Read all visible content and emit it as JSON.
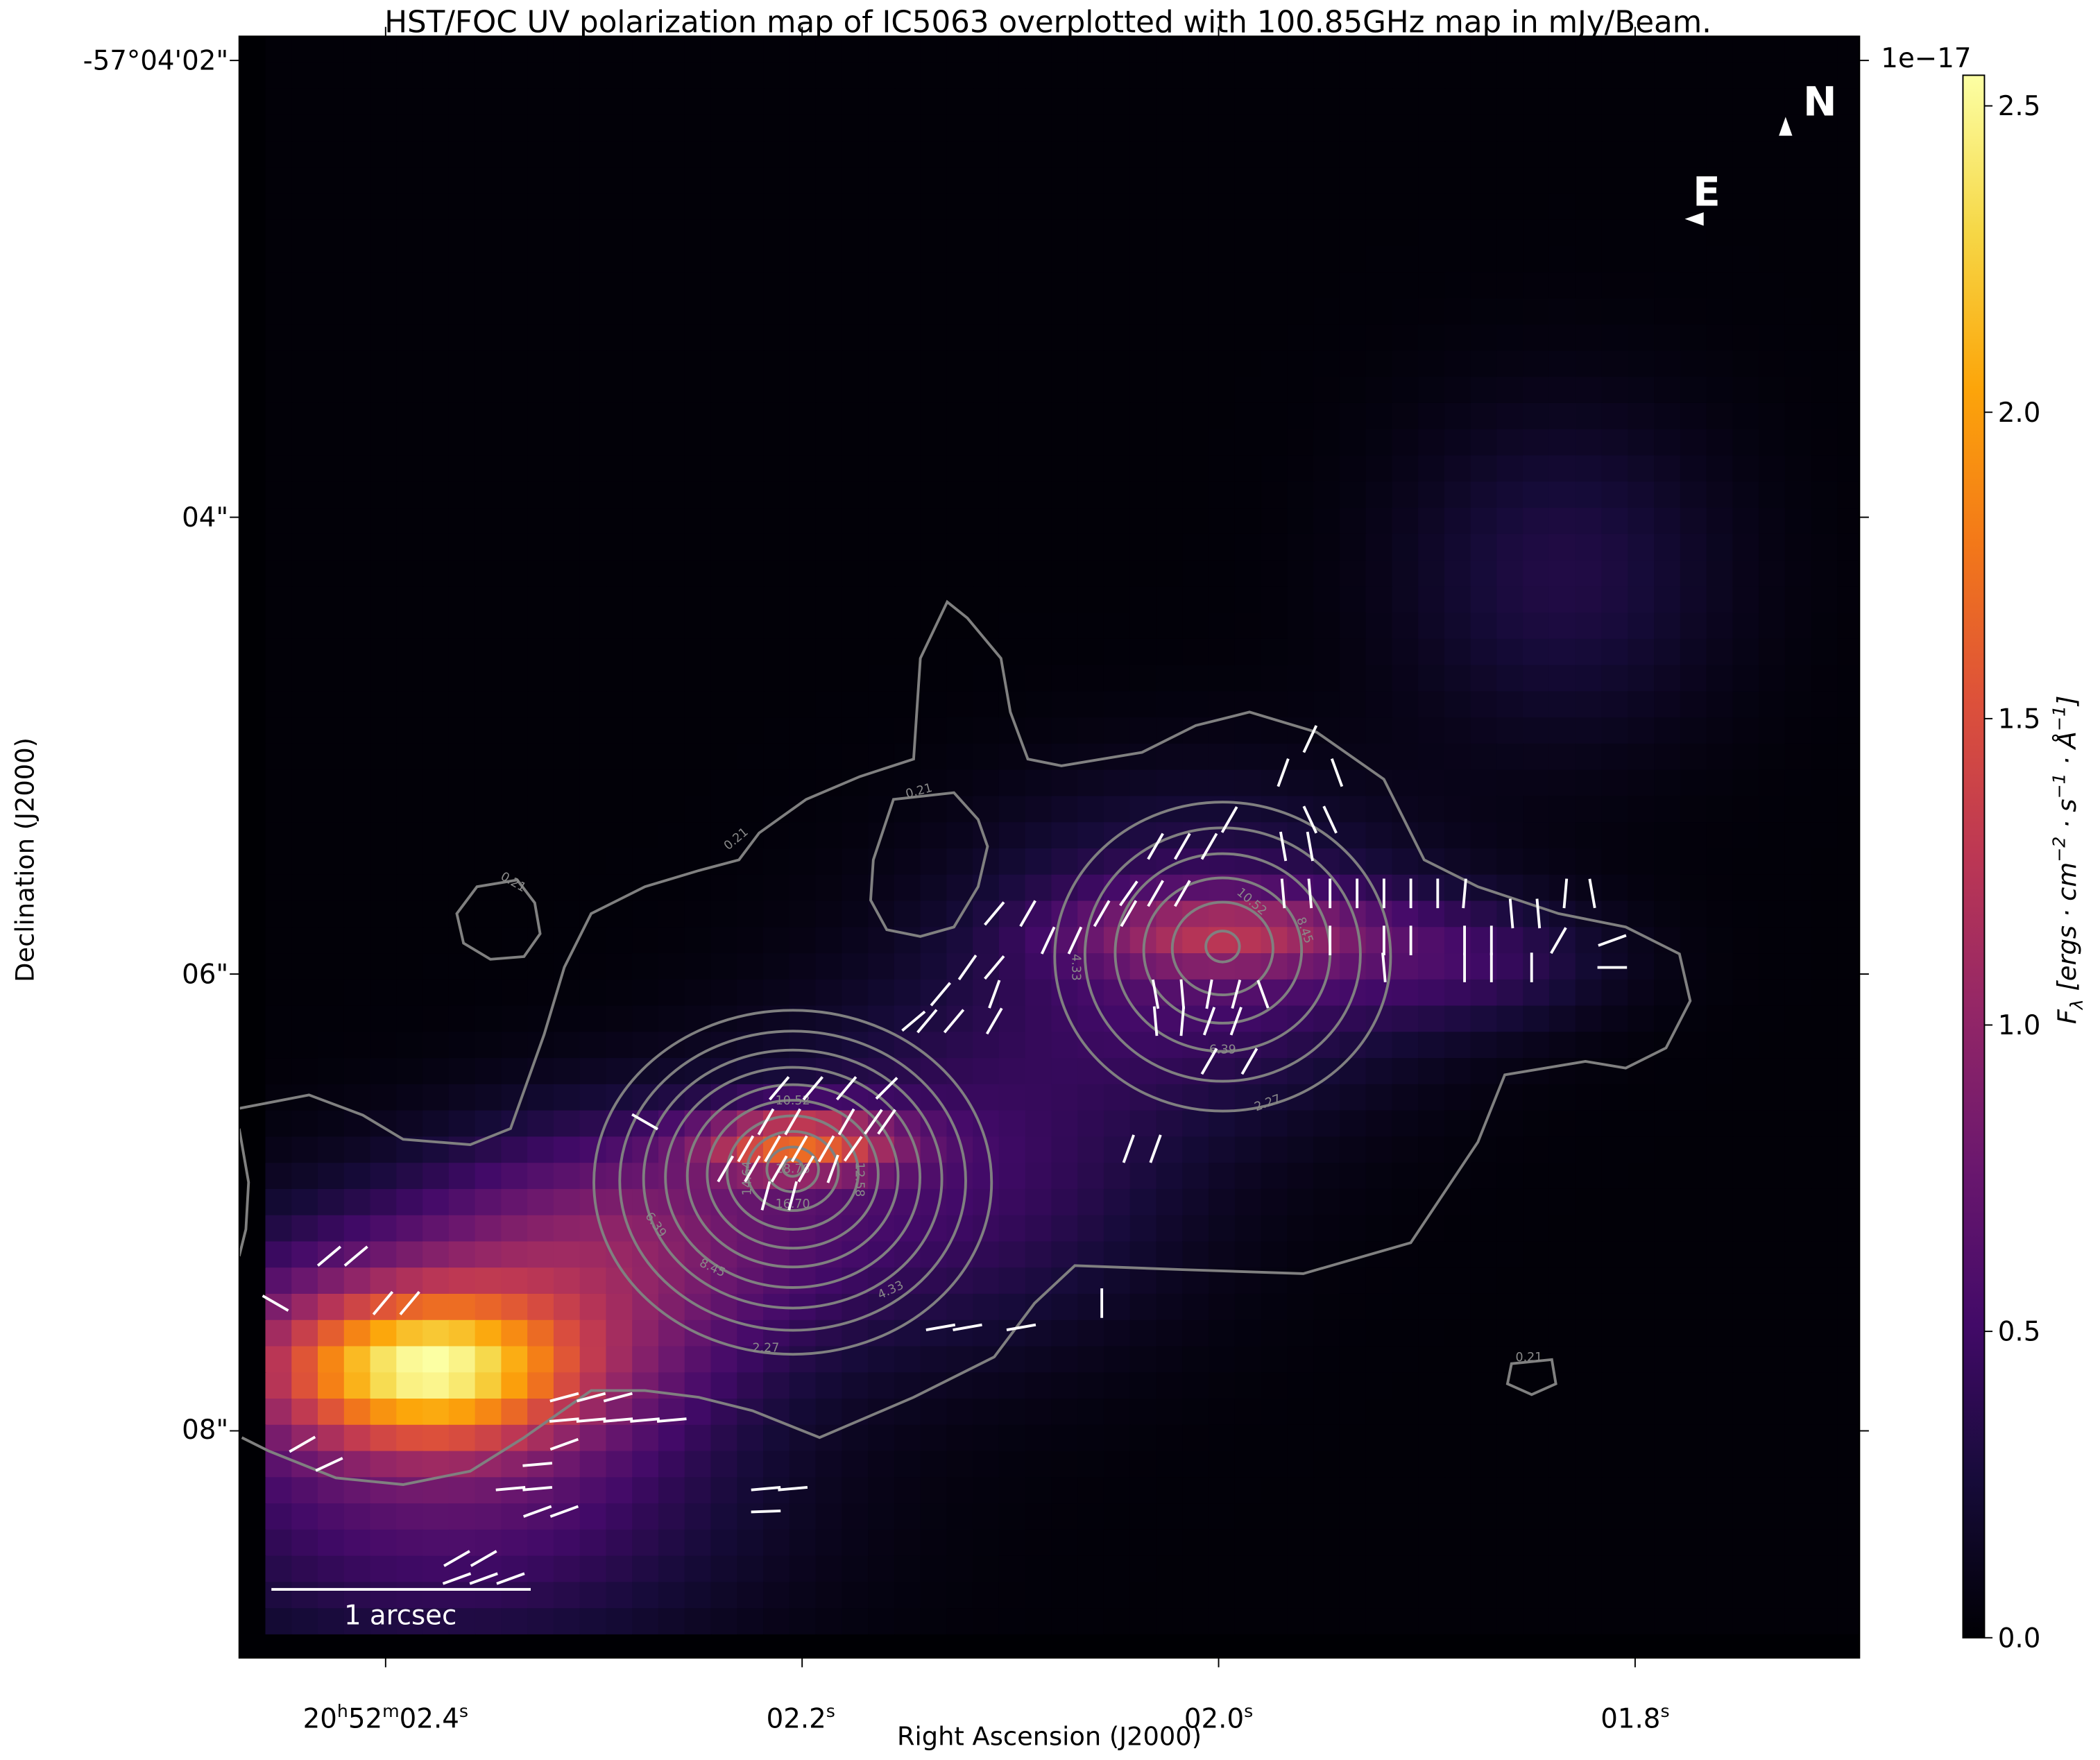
{
  "chart_data": {
    "type": "heatmap",
    "title": "HST/FOC UV polarization map of IC5063 overplotted with 100.85GHz map in mJy/Beam.",
    "xlabel": "Right Ascension (J2000)",
    "ylabel": "Declination (J2000)",
    "x_ticks": [
      {
        "h": "20",
        "m": "52",
        "s": "02.4",
        "value_s": 2.4
      },
      {
        "s": "02.2",
        "value_s": 2.2
      },
      {
        "s": "02.0",
        "value_s": 2.0
      },
      {
        "s": "01.8",
        "value_s": 1.8
      }
    ],
    "y_ticks": [
      {
        "label": "-57°04'02\"",
        "value_arcsec": 2
      },
      {
        "label": "04\"",
        "value_arcsec": 4
      },
      {
        "label": "06\"",
        "value_arcsec": 6
      },
      {
        "label": "08\"",
        "value_arcsec": 8
      }
    ],
    "colormap": "inferno",
    "colorbar": {
      "offset_label": "1e−17",
      "label": {
        "main": "F",
        "sub": "λ",
        "body": " [ergs · cm",
        "e1": "−2",
        "mid1": " · s",
        "e2": "−1",
        "mid2": " · Å",
        "e3": "−1",
        "end": "]"
      },
      "ticks": [
        "0.0",
        "0.5",
        "1.0",
        "1.5",
        "2.0",
        "2.5"
      ],
      "range": [
        0,
        2.55
      ]
    },
    "heatmap_components": [
      {
        "ra_s": 2.382,
        "dec_arcsec": 7.74,
        "peak": 1.45,
        "sigma_ra_arcsec": 0.45,
        "sigma_dec_arcsec": 0.22
      },
      {
        "ra_s": 2.372,
        "dec_arcsec": 7.65,
        "peak": 1.0,
        "sigma_ra_arcsec": 0.8,
        "sigma_dec_arcsec": 0.4
      },
      {
        "ra_s": 2.201,
        "dec_arcsec": 6.74,
        "peak": 1.25,
        "sigma_ra_arcsec": 0.3,
        "sigma_dec_arcsec": 0.1
      },
      {
        "ra_s": 2.285,
        "dec_arcsec": 7.1,
        "peak": 0.65,
        "sigma_ra_arcsec": 0.6,
        "sigma_dec_arcsec": 0.35
      },
      {
        "ra_s": 2.13,
        "dec_arcsec": 6.9,
        "peak": 0.45,
        "sigma_ra_arcsec": 0.7,
        "sigma_dec_arcsec": 0.5
      },
      {
        "ra_s": 2.01,
        "dec_arcsec": 5.9,
        "peak": 0.55,
        "sigma_ra_arcsec": 0.7,
        "sigma_dec_arcsec": 0.45
      },
      {
        "ra_s": 1.995,
        "dec_arcsec": 5.82,
        "peak": 0.7,
        "sigma_ra_arcsec": 0.45,
        "sigma_dec_arcsec": 0.12
      },
      {
        "ra_s": 1.88,
        "dec_arcsec": 5.95,
        "peak": 0.35,
        "sigma_ra_arcsec": 0.45,
        "sigma_dec_arcsec": 0.2
      },
      {
        "ra_s": 1.835,
        "dec_arcsec": 4.25,
        "peak": 0.3,
        "sigma_ra_arcsec": 0.5,
        "sigma_dec_arcsec": 0.5
      },
      {
        "ra_s": 2.37,
        "dec_arcsec": 8.45,
        "peak": 0.45,
        "sigma_ra_arcsec": 0.9,
        "sigma_dec_arcsec": 0.4
      }
    ],
    "contours": {
      "unit": "mJy/Beam",
      "frequency": "100.85GHz",
      "levels": [
        0.21,
        2.27,
        4.33,
        6.39,
        8.45,
        10.52,
        12.58,
        14.64,
        16.7,
        18.76
      ],
      "labels_shown": [
        "0.21",
        "0.21",
        "0.21",
        "0.21",
        "2.27",
        "4.33",
        "6.39",
        "8.45",
        "10.52",
        "12.58",
        "14.64",
        "16.70",
        "18.76",
        "2.27",
        "4.33",
        "6.39",
        "8.45",
        "10.52"
      ]
    },
    "polarization_vectors": [
      {
        "dec": 4.971,
        "v": [
          [
            1.9561,
            -25
          ]
        ]
      },
      {
        "dec": 5.118,
        "v": [
          [
            1.969,
            -20
          ],
          [
            1.9432,
            20
          ]
        ]
      },
      {
        "dec": 5.324,
        "v": [
          [
            1.9948,
            -30
          ],
          [
            1.9561,
            25
          ],
          [
            1.9465,
            25
          ]
        ]
      },
      {
        "dec": 5.441,
        "v": [
          [
            2.0303,
            -30
          ],
          [
            2.0174,
            -30
          ],
          [
            2.0045,
            -30
          ],
          [
            1.969,
            10
          ],
          [
            1.9561,
            10
          ]
        ]
      },
      {
        "dec": 5.647,
        "v": [
          [
            2.0432,
            -35
          ],
          [
            2.0303,
            -30
          ],
          [
            2.0174,
            -30
          ],
          [
            1.969,
            5
          ],
          [
            1.9561,
            5
          ],
          [
            1.9465,
            0
          ],
          [
            1.9335,
            0
          ],
          [
            1.9206,
            0
          ],
          [
            1.9077,
            0
          ],
          [
            1.8948,
            0
          ],
          [
            1.8819,
            -5
          ],
          [
            1.8335,
            -5
          ],
          [
            1.8206,
            10
          ]
        ]
      },
      {
        "dec": 5.735,
        "v": [
          [
            2.0561,
            -30
          ],
          [
            2.0432,
            -30
          ],
          [
            2.0916,
            -30
          ],
          [
            2.1077,
            -40
          ],
          [
            1.8594,
            5
          ],
          [
            1.8465,
            5
          ]
        ]
      },
      {
        "dec": 5.853,
        "v": [
          [
            2.069,
            -25
          ],
          [
            2.0819,
            -25
          ],
          [
            1.9465,
            0
          ],
          [
            1.9206,
            0
          ],
          [
            1.9077,
            0
          ],
          [
            1.8819,
            0
          ],
          [
            1.869,
            0
          ],
          [
            1.8368,
            -30
          ],
          [
            1.811,
            -70
          ]
        ]
      },
      {
        "dec": 5.971,
        "v": [
          [
            2.1077,
            -40
          ],
          [
            2.1206,
            -35
          ],
          [
            1.8819,
            0
          ],
          [
            1.869,
            0
          ],
          [
            1.8497,
            0
          ],
          [
            1.811,
            -90
          ],
          [
            1.9206,
            5
          ]
        ]
      },
      {
        "dec": 6.088,
        "v": [
          [
            2.1335,
            -40
          ],
          [
            2.1077,
            -20
          ],
          [
            2.0303,
            10
          ],
          [
            2.0174,
            5
          ],
          [
            2.0045,
            -10
          ],
          [
            1.9916,
            -15
          ],
          [
            1.9787,
            20
          ]
        ]
      },
      {
        "dec": 6.206,
        "v": [
          [
            2.14,
            -40
          ],
          [
            2.1271,
            -40
          ],
          [
            2.1077,
            -30
          ],
          [
            2.0303,
            5
          ],
          [
            2.0174,
            -5
          ],
          [
            2.0045,
            -20
          ],
          [
            1.9916,
            -20
          ],
          [
            2.1465,
            -50
          ]
        ]
      },
      {
        "dec": 6.382,
        "v": [
          [
            2.0045,
            -30
          ],
          [
            1.9852,
            -30
          ]
        ]
      },
      {
        "dec": 6.5,
        "v": [
          [
            2.211,
            -40
          ],
          [
            2.1948,
            -40
          ],
          [
            2.1787,
            -40
          ],
          [
            2.1594,
            -45
          ]
        ]
      },
      {
        "dec": 6.647,
        "v": [
          [
            2.2174,
            -30
          ],
          [
            2.2045,
            -30
          ],
          [
            2.1787,
            -30
          ],
          [
            2.1658,
            -35
          ],
          [
            2.1594,
            -35
          ],
          [
            2.2755,
            60
          ]
        ]
      },
      {
        "dec": 6.765,
        "v": [
          [
            2.2271,
            -30
          ],
          [
            2.2142,
            -30
          ],
          [
            2.2013,
            -30
          ],
          [
            2.1884,
            -30
          ],
          [
            2.1755,
            -35
          ],
          [
            2.0432,
            -20
          ],
          [
            2.0303,
            -20
          ]
        ]
      },
      {
        "dec": 6.853,
        "v": [
          [
            2.2368,
            -30
          ],
          [
            2.2239,
            -30
          ],
          [
            2.211,
            -30
          ],
          [
            2.1981,
            -30
          ],
          [
            2.1852,
            -20
          ]
        ]
      },
      {
        "dec": 6.971,
        "v": [
          [
            2.2174,
            -15
          ],
          [
            2.2045,
            -15
          ]
        ]
      },
      {
        "dec": 7.235,
        "v": [
          [
            2.4271,
            -50
          ],
          [
            2.4142,
            -50
          ]
        ]
      },
      {
        "dec": 7.441,
        "v": [
          [
            2.4529,
            60
          ],
          [
            2.4013,
            -40
          ],
          [
            2.3884,
            -40
          ],
          [
            2.0561,
            0
          ]
        ]
      },
      {
        "dec": 7.547,
        "v": [
          [
            2.1335,
            -80
          ],
          [
            2.1206,
            -80
          ],
          [
            2.0948,
            -80
          ]
        ]
      },
      {
        "dec": 7.853,
        "v": [
          [
            2.3142,
            -75
          ],
          [
            2.3013,
            -75
          ],
          [
            2.2884,
            -75
          ]
        ]
      },
      {
        "dec": 7.953,
        "v": [
          [
            2.3142,
            -85
          ],
          [
            2.3013,
            -85
          ],
          [
            2.2884,
            -85
          ],
          [
            2.2755,
            -85
          ],
          [
            2.2626,
            -85
          ]
        ]
      },
      {
        "dec": 8.059,
        "v": [
          [
            2.44,
            -60
          ],
          [
            2.3142,
            -70
          ]
        ]
      },
      {
        "dec": 8.147,
        "v": [
          [
            2.4271,
            -65
          ],
          [
            2.3271,
            -85
          ]
        ]
      },
      {
        "dec": 8.253,
        "v": [
          [
            2.34,
            -85
          ],
          [
            2.3271,
            -85
          ],
          [
            2.2174,
            -85
          ],
          [
            2.2045,
            -85
          ]
        ]
      },
      {
        "dec": 8.353,
        "v": [
          [
            2.3271,
            -70
          ],
          [
            2.3142,
            -70
          ],
          [
            2.2174,
            -88
          ]
        ]
      },
      {
        "dec": 8.559,
        "v": [
          [
            2.3658,
            -60
          ],
          [
            2.3529,
            -60
          ]
        ]
      },
      {
        "dec": 8.647,
        "v": [
          [
            2.3658,
            -70
          ],
          [
            2.3529,
            -70
          ],
          [
            2.34,
            -70
          ]
        ]
      }
    ],
    "compass": {
      "north": "N",
      "east": "E"
    },
    "scale_bar": "1 arcsec",
    "colors": {
      "contour": "#808080",
      "vectors": "#ffffff",
      "background": "#000004"
    }
  }
}
